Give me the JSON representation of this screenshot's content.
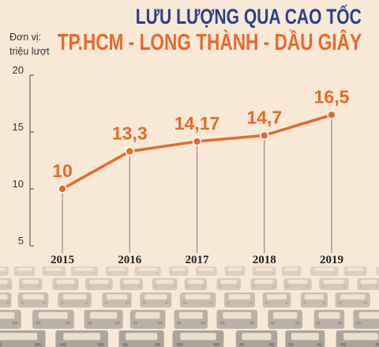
{
  "header": {
    "title_line1": "LƯU LƯỢNG QUA CAO TỐC",
    "title_line2": "TP.HCM - LONG THÀNH - DẦU GIÂY",
    "unit_line1": "Đơn vị:",
    "unit_line2": "triệu lượt"
  },
  "colors": {
    "background": "#f7e9d6",
    "title_primary": "#2b3d8c",
    "accent": "#e8692a",
    "traffic": "#9a938c"
  },
  "chart_data": {
    "type": "line",
    "title": "LƯU LƯỢNG QUA CAO TỐC TP.HCM - LONG THÀNH - DẦU GIÂY",
    "ylabel": "Đơn vị: triệu lượt",
    "categories": [
      "2015",
      "2016",
      "2017",
      "2018",
      "2019"
    ],
    "values": [
      10,
      13.3,
      14.17,
      14.7,
      16.5
    ],
    "value_labels": [
      "10",
      "13,3",
      "14,17",
      "14,7",
      "16,5"
    ],
    "y_ticks": [
      "5",
      "10",
      "15",
      "20"
    ],
    "ylim": [
      5,
      20
    ],
    "grid": false
  }
}
